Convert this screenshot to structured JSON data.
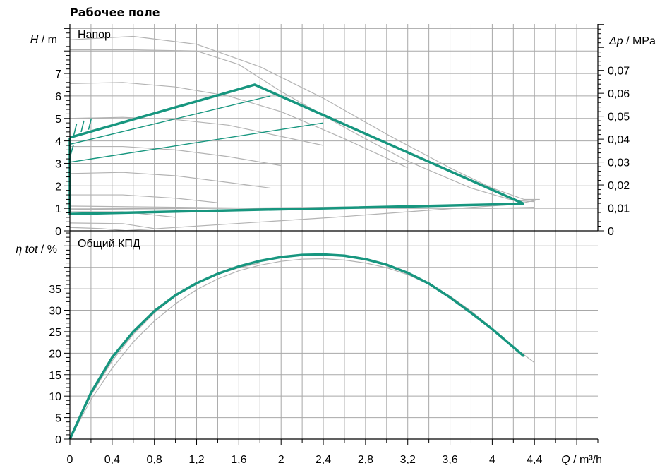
{
  "chart_data": {
    "title": "Рабочее поле",
    "type": "line",
    "colors": {
      "accent": "#17967f",
      "grid": "#a8a8a8",
      "curve": "#b3b3b3",
      "axis": "#000000"
    },
    "x_axis": {
      "label_symbol": "Q",
      "label_unit": "/ m³/h",
      "range": [
        0,
        5.0
      ],
      "tick_labels": [
        "0",
        "0,4",
        "0,8",
        "1,2",
        "1,6",
        "2",
        "2,4",
        "2,8",
        "3,2",
        "3,6",
        "4",
        "4,4"
      ],
      "tick_values": [
        0,
        0.4,
        0.8,
        1.2,
        1.6,
        2.0,
        2.4,
        2.8,
        3.2,
        3.6,
        4.0,
        4.4
      ]
    },
    "head_panel": {
      "title": "Напор",
      "y_label_symbol": "H",
      "y_label_unit": "/ m",
      "y_range": [
        0,
        9.2
      ],
      "y_tick_labels": [
        "0",
        "1",
        "2",
        "3",
        "4",
        "5",
        "6",
        "7"
      ],
      "y_tick_values": [
        0,
        1,
        2,
        3,
        4,
        5,
        6,
        7
      ],
      "secondary_label_symbol": "Δp",
      "secondary_label_unit": "/ MPa",
      "secondary_tick_labels": [
        "0",
        "0,01",
        "0,02",
        "0,03",
        "0,04",
        "0,05",
        "0,06",
        "0,07"
      ],
      "secondary_tick_values": [
        0,
        0.01,
        0.02,
        0.03,
        0.04,
        0.05,
        0.06,
        0.07
      ],
      "working_range": {
        "points": [
          [
            0,
            4.15
          ],
          [
            1.75,
            6.5
          ],
          [
            4.3,
            1.2
          ],
          [
            0,
            0.75
          ],
          [
            0,
            4.15
          ]
        ]
      },
      "control_lines": [
        {
          "x": [
            0,
            1.9
          ],
          "y": [
            3.85,
            6.0
          ]
        },
        {
          "x": [
            0,
            2.4
          ],
          "y": [
            3.05,
            4.8
          ]
        }
      ],
      "pump_curves": [
        {
          "x": [
            0,
            0.6,
            1.2,
            1.8,
            2.4,
            3.0,
            3.6,
            4.0,
            4.3,
            4.45,
            4.3
          ],
          "y": [
            8.5,
            8.65,
            8.3,
            7.3,
            5.9,
            4.3,
            2.8,
            1.9,
            1.4,
            1.4,
            1.25
          ]
        },
        {
          "x": [
            0,
            0.6,
            1.2,
            1.6,
            2.0,
            2.6,
            3.2,
            3.8,
            4.2,
            4.4
          ],
          "y": [
            8.05,
            8.05,
            8.0,
            7.4,
            6.2,
            4.6,
            3.1,
            1.9,
            1.35,
            1.3
          ]
        },
        {
          "x": [
            0,
            0.5,
            1.0,
            1.5,
            2.0,
            2.6,
            3.2
          ],
          "y": [
            6.55,
            6.6,
            6.4,
            6.0,
            5.3,
            4.1,
            2.8
          ]
        },
        {
          "x": [
            0,
            0.5,
            1.0,
            1.5,
            2.0,
            2.4
          ],
          "y": [
            5.0,
            5.05,
            4.95,
            4.7,
            4.2,
            3.8
          ]
        },
        {
          "x": [
            0,
            0.5,
            1.0,
            1.5,
            2.0
          ],
          "y": [
            3.75,
            3.75,
            3.6,
            3.3,
            2.9
          ]
        },
        {
          "x": [
            0,
            0.5,
            1.0,
            1.5,
            1.9
          ],
          "y": [
            2.55,
            2.6,
            2.45,
            2.15,
            1.9
          ]
        },
        {
          "x": [
            0,
            0.5,
            1.0,
            1.4
          ],
          "y": [
            1.6,
            1.6,
            1.45,
            1.25
          ]
        },
        {
          "x": [
            0,
            0.5,
            1.0
          ],
          "y": [
            0.85,
            0.85,
            0.6
          ]
        },
        {
          "x": [
            0,
            0.5,
            0.8
          ],
          "y": [
            0.35,
            0.32,
            0.1
          ]
        },
        {
          "x": [
            0,
            0.3,
            0.55
          ],
          "y": [
            0.15,
            0.1,
            0.0
          ]
        },
        {
          "x": [
            0,
            1.4,
            2.4,
            3.4,
            4.3
          ],
          "y": [
            0.95,
            1.0,
            1.05,
            1.1,
            1.2
          ]
        },
        {
          "x": [
            0,
            1.0,
            2.0,
            3.0,
            4.0,
            4.4
          ],
          "y": [
            1.1,
            1.05,
            1.0,
            1.0,
            1.0,
            1.05
          ]
        },
        {
          "x": [
            0.5,
            1.5,
            2.5,
            3.5,
            4.3
          ],
          "y": [
            0.0,
            0.3,
            0.6,
            0.95,
            1.2
          ]
        }
      ]
    },
    "efficiency_panel": {
      "title": "Общий КПД",
      "y_label_symbol": "η tot",
      "y_label_unit": "/ %",
      "y_range": [
        0,
        48.5
      ],
      "y_tick_labels": [
        "0",
        "5",
        "10",
        "15",
        "20",
        "25",
        "30",
        "35"
      ],
      "y_tick_values": [
        0,
        5,
        10,
        15,
        20,
        25,
        30,
        35
      ],
      "main_curve": {
        "x": [
          0,
          0.2,
          0.4,
          0.6,
          0.8,
          1.0,
          1.2,
          1.4,
          1.6,
          1.8,
          2.0,
          2.2,
          2.4,
          2.6,
          2.8,
          3.0,
          3.2,
          3.4,
          3.6,
          3.8,
          4.0,
          4.2,
          4.3
        ],
        "y": [
          0,
          10.8,
          19.0,
          25.0,
          29.8,
          33.5,
          36.3,
          38.5,
          40.2,
          41.5,
          42.4,
          42.9,
          43.0,
          42.7,
          41.9,
          40.6,
          38.7,
          36.2,
          33.0,
          29.4,
          25.6,
          21.4,
          19.3
        ]
      },
      "gray_curves": [
        {
          "x": [
            0,
            0.2,
            0.4,
            0.6,
            0.8,
            1.0,
            1.2,
            1.4,
            1.6,
            1.8,
            2.0,
            2.2,
            2.4,
            2.6,
            2.8,
            3.0,
            3.2,
            3.4,
            3.6,
            3.8,
            4.0,
            4.2,
            4.4
          ],
          "y": [
            0,
            9.2,
            16.5,
            22.6,
            27.5,
            31.5,
            34.8,
            37.3,
            39.2,
            40.5,
            41.4,
            41.9,
            42.0,
            41.7,
            41.0,
            39.9,
            38.3,
            36.1,
            33.3,
            29.8,
            25.8,
            21.5,
            17.8
          ]
        },
        {
          "x": [
            0,
            0.2,
            0.4,
            0.6,
            0.8,
            1.0,
            1.2,
            1.4,
            1.6,
            1.8
          ],
          "y": [
            0,
            10.2,
            18.2,
            24.4,
            29.4,
            33.3,
            36.2,
            38.4,
            39.9,
            41.0
          ]
        }
      ]
    }
  }
}
